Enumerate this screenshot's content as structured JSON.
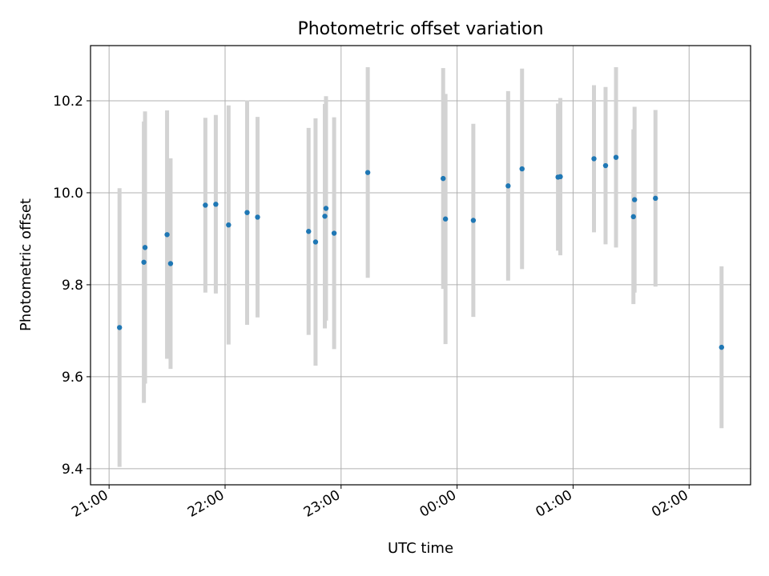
{
  "chart_data": {
    "type": "scatter",
    "title": "Photometric offset variation",
    "xlabel": "UTC time",
    "ylabel": "Photometric offset",
    "grid": true,
    "x_unit": "UTC time (hours, continuing past midnight: 24 = 00:00, 25 = 01:00, 26 = 02:00)",
    "xlim": [
      20.84,
      26.53
    ],
    "ylim": [
      9.365,
      10.32
    ],
    "x_ticks": [
      {
        "value": 21,
        "label": "21:00"
      },
      {
        "value": 22,
        "label": "22:00"
      },
      {
        "value": 23,
        "label": "23:00"
      },
      {
        "value": 24,
        "label": "00:00"
      },
      {
        "value": 25,
        "label": "01:00"
      },
      {
        "value": 26,
        "label": "02:00"
      }
    ],
    "y_ticks": [
      {
        "value": 9.4,
        "label": "9.4"
      },
      {
        "value": 9.6,
        "label": "9.6"
      },
      {
        "value": 9.8,
        "label": "9.8"
      },
      {
        "value": 10.0,
        "label": "10.0"
      },
      {
        "value": 10.2,
        "label": "10.2"
      }
    ],
    "colors": {
      "points": "#1f77b4",
      "errorbars": "#d3d3d3",
      "grid": "#b0b0b0"
    },
    "points": [
      {
        "x": 21.09,
        "y": 9.707,
        "err": 0.303
      },
      {
        "x": 21.3,
        "y": 9.849,
        "err": 0.306
      },
      {
        "x": 21.31,
        "y": 9.881,
        "err": 0.296
      },
      {
        "x": 21.5,
        "y": 9.909,
        "err": 0.27
      },
      {
        "x": 21.53,
        "y": 9.846,
        "err": 0.229
      },
      {
        "x": 21.83,
        "y": 9.973,
        "err": 0.19
      },
      {
        "x": 21.92,
        "y": 9.975,
        "err": 0.194
      },
      {
        "x": 22.03,
        "y": 9.93,
        "err": 0.26
      },
      {
        "x": 22.19,
        "y": 9.957,
        "err": 0.244
      },
      {
        "x": 22.28,
        "y": 9.947,
        "err": 0.218
      },
      {
        "x": 22.72,
        "y": 9.916,
        "err": 0.225
      },
      {
        "x": 22.78,
        "y": 9.893,
        "err": 0.269
      },
      {
        "x": 22.86,
        "y": 9.949,
        "err": 0.244
      },
      {
        "x": 22.87,
        "y": 9.966,
        "err": 0.244
      },
      {
        "x": 22.94,
        "y": 9.912,
        "err": 0.252
      },
      {
        "x": 23.23,
        "y": 10.044,
        "err": 0.229
      },
      {
        "x": 23.88,
        "y": 10.031,
        "err": 0.24
      },
      {
        "x": 23.9,
        "y": 9.943,
        "err": 0.272
      },
      {
        "x": 24.14,
        "y": 9.94,
        "err": 0.21
      },
      {
        "x": 24.44,
        "y": 10.015,
        "err": 0.206
      },
      {
        "x": 24.56,
        "y": 10.052,
        "err": 0.218
      },
      {
        "x": 24.87,
        "y": 10.034,
        "err": 0.16
      },
      {
        "x": 24.89,
        "y": 10.035,
        "err": 0.171
      },
      {
        "x": 25.18,
        "y": 10.074,
        "err": 0.16
      },
      {
        "x": 25.28,
        "y": 10.059,
        "err": 0.171
      },
      {
        "x": 25.37,
        "y": 10.077,
        "err": 0.196
      },
      {
        "x": 25.52,
        "y": 9.948,
        "err": 0.19
      },
      {
        "x": 25.53,
        "y": 9.985,
        "err": 0.202
      },
      {
        "x": 25.71,
        "y": 9.988,
        "err": 0.192
      },
      {
        "x": 26.28,
        "y": 9.664,
        "err": 0.176
      }
    ]
  }
}
